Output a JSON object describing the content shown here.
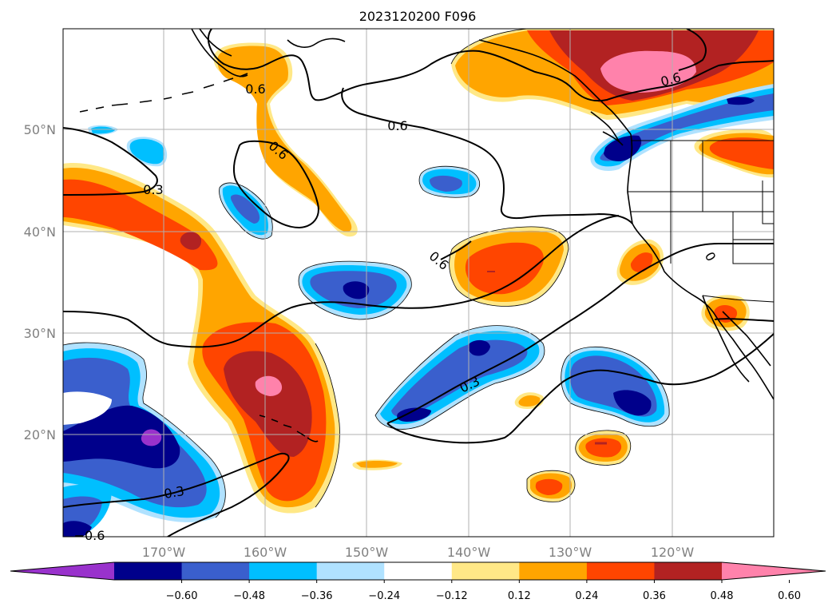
{
  "title": "2023120200 F096",
  "longitude_labels": [
    "170°W",
    "160°W",
    "150°W",
    "140°W",
    "130°W",
    "120°W"
  ],
  "latitude_labels": [
    "50°N",
    "40°N",
    "30°N",
    "20°N"
  ],
  "colorbar": {
    "tick_labels": [
      "−0.60",
      "−0.48",
      "−0.36",
      "−0.24",
      "−0.12",
      "0.12",
      "0.24",
      "0.36",
      "0.48",
      "0.60"
    ],
    "colors": [
      "#9932cc",
      "#00008b",
      "#3a5fcd",
      "#00bfff",
      "#b0e2ff",
      "#ffffff",
      "#ffe887",
      "#ffa500",
      "#ff4500",
      "#b22222",
      "#ff82ab"
    ]
  },
  "contour_labels": [
    "0.6",
    "0.6",
    "0.6",
    "0.3",
    "0.6",
    "0.6",
    "0.3",
    "0.3",
    "−0.6",
    "0"
  ],
  "colors": {
    "pink": "#ff82ab",
    "firebrick": "#b22222",
    "orangered": "#ff4500",
    "orange": "#ffa500",
    "light_yellow": "#ffe887",
    "light_blue": "#b0e2ff",
    "sky_blue": "#00bfff",
    "royal_blue": "#3a5fcd",
    "navy": "#00008b",
    "purple": "#9932cc"
  }
}
